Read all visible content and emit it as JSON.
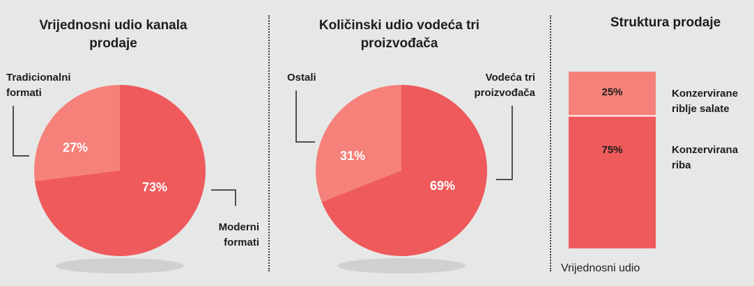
{
  "colors": {
    "dark": "#ef5a5c",
    "light": "#f5817a",
    "shadow": "#cfd0cf",
    "background": "#e6e8e7"
  },
  "chart_data": [
    {
      "type": "pie",
      "title": "Vrijednosni udio kanala\nprodaje",
      "slices": [
        {
          "label": "Moderni\nformati",
          "value": 73,
          "value_label": "73%"
        },
        {
          "label": "Tradicionalni\nformati",
          "value": 27,
          "value_label": "27%"
        }
      ]
    },
    {
      "type": "pie",
      "title": "Količinski udio vodeća tri\nproizvođača",
      "slices": [
        {
          "label": "Vodeća tri\nproizvođača",
          "value": 69,
          "value_label": "69%"
        },
        {
          "label": "Ostali",
          "value": 31,
          "value_label": "31%"
        }
      ]
    },
    {
      "type": "bar",
      "title": "Struktura prodaje",
      "xlabel": "Vrijednosni udio",
      "stacked": true,
      "segments": [
        {
          "label": "Konzervirane\nriblje salate",
          "value": 25,
          "value_label": "25%"
        },
        {
          "label": "Konzervirana\nriba",
          "value": 75,
          "value_label": "75%"
        }
      ]
    }
  ]
}
